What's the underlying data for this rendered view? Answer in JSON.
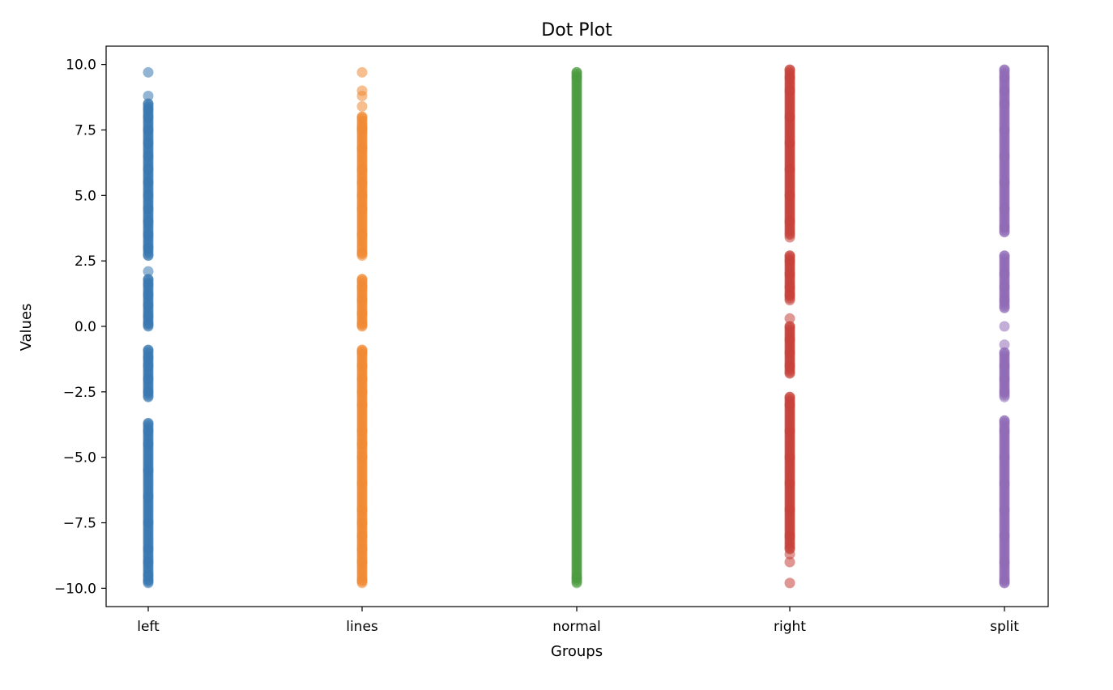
{
  "chart_data": {
    "type": "scatter",
    "title": "Dot Plot",
    "xlabel": "Groups",
    "ylabel": "Values",
    "categories": [
      "left",
      "lines",
      "normal",
      "right",
      "split"
    ],
    "ylim": [
      -10.7,
      10.7
    ],
    "yticks": [
      10.0,
      7.5,
      5.0,
      2.5,
      0.0,
      -2.5,
      -5.0,
      -7.5,
      -10.0
    ],
    "ytick_labels": [
      "10.0",
      "7.5",
      "5.0",
      "2.5",
      "0.0",
      "−2.5",
      "−5.0",
      "−7.5",
      "−10.0"
    ],
    "grid": false,
    "legend": "none",
    "series": [
      {
        "category": "left",
        "color": "#3a78b0",
        "segments": [
          [
            -9.8,
            -3.7
          ],
          [
            -2.7,
            -0.9
          ],
          [
            0.0,
            1.8
          ],
          [
            2.7,
            8.5
          ]
        ],
        "points": [
          -9.8,
          -9.7,
          -9.5,
          -9.0,
          -8.5,
          -7.5,
          -6.5,
          -5.5,
          -4.5,
          -4.0,
          -3.7,
          -2.7,
          -2.5,
          -2.0,
          -1.5,
          -1.2,
          -0.9,
          0.0,
          0.1,
          0.4,
          0.8,
          1.2,
          1.6,
          1.8,
          2.1,
          2.7,
          3.0,
          3.5,
          4.0,
          4.5,
          5.0,
          5.5,
          6.0,
          6.5,
          7.0,
          7.5,
          8.0,
          8.3,
          8.5,
          8.8,
          9.7
        ]
      },
      {
        "category": "lines",
        "color": "#f08a34",
        "segments": [
          [
            -9.8,
            -0.9
          ],
          [
            0.0,
            1.8
          ],
          [
            2.7,
            8.0
          ]
        ],
        "points": [
          -9.8,
          -9.7,
          -9.0,
          -8.5,
          -8.0,
          -7.5,
          -7.0,
          -6.0,
          -5.0,
          -4.5,
          -4.0,
          -3.0,
          -2.5,
          -2.0,
          -1.5,
          -1.0,
          -0.9,
          0.0,
          0.1,
          0.5,
          1.0,
          1.5,
          1.8,
          2.7,
          2.8,
          3.5,
          4.5,
          5.0,
          5.5,
          6.0,
          6.8,
          7.5,
          7.6,
          8.0,
          8.4,
          8.8,
          9.0,
          9.7
        ]
      },
      {
        "category": "normal",
        "color": "#4a9a40",
        "segments": [
          [
            -9.8,
            9.7
          ]
        ],
        "points": [
          -9.8,
          -9.6,
          9.5,
          9.7
        ]
      },
      {
        "category": "right",
        "color": "#c6423a",
        "segments": [
          [
            -8.5,
            -2.7
          ],
          [
            -1.8,
            0.0
          ],
          [
            1.0,
            2.7
          ],
          [
            3.5,
            9.8
          ]
        ],
        "points": [
          -9.8,
          -9.0,
          -8.7,
          -8.5,
          -8.0,
          -7.0,
          -6.0,
          -5.0,
          -4.0,
          -3.0,
          -2.7,
          -1.8,
          -1.5,
          -1.0,
          -0.5,
          0.0,
          0.3,
          1.0,
          1.2,
          1.5,
          2.0,
          2.5,
          2.7,
          3.4,
          3.5,
          4.0,
          5.0,
          6.0,
          7.0,
          8.0,
          9.0,
          9.5,
          9.8
        ]
      },
      {
        "category": "split",
        "color": "#8f6bb7",
        "segments": [
          [
            -9.8,
            -3.6
          ],
          [
            -2.7,
            -1.0
          ],
          [
            0.7,
            2.7
          ],
          [
            3.6,
            9.8
          ]
        ],
        "points": [
          -9.8,
          -9.7,
          -9.0,
          -8.0,
          -7.0,
          -6.0,
          -5.0,
          -4.0,
          -3.6,
          -2.7,
          -2.5,
          -2.0,
          -1.5,
          -1.0,
          -0.7,
          0.0,
          0.7,
          1.0,
          1.5,
          2.0,
          2.7,
          3.6,
          3.8,
          4.5,
          5.5,
          6.5,
          7.5,
          8.5,
          9.0,
          9.5,
          9.8
        ]
      }
    ]
  }
}
